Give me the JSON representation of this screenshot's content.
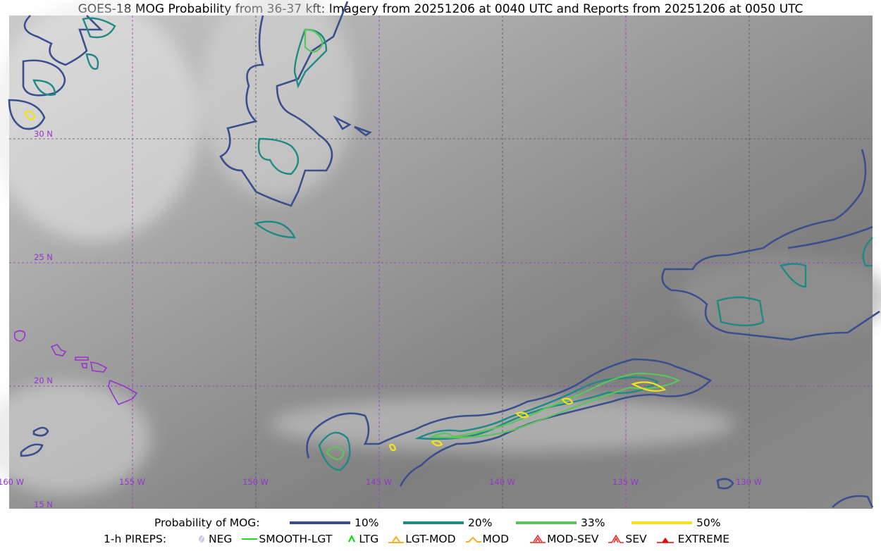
{
  "title": "GOES-18 MOG Probability from 36-37 kft: Imagery from 20251206 at 0040 UTC and Reports from 20251206 at 0050 UTC",
  "map": {
    "lat_labels": [
      "30 N",
      "25 N",
      "20 N",
      "15 N"
    ],
    "lon_labels": [
      "160 W",
      "155 W",
      "150 W",
      "145 W",
      "140 W",
      "135 W",
      "130 W"
    ],
    "grid_color": "#9933cc",
    "coastline_color": "#9933cc"
  },
  "legend": {
    "probability_title": "Probability of MOG:",
    "levels": [
      {
        "label": "10%",
        "color": "#3b4f8c"
      },
      {
        "label": "20%",
        "color": "#1f8a84"
      },
      {
        "label": "33%",
        "color": "#5cc45c"
      },
      {
        "label": "50%",
        "color": "#f4e01c"
      }
    ],
    "pireps_title": "1-h PIREPS:",
    "pireps": [
      {
        "label": "NEG",
        "icon": "neg-icon",
        "color": "#c8c8f0"
      },
      {
        "label": "SMOOTH-LGT",
        "icon": "line-icon",
        "color": "#22dd22"
      },
      {
        "label": "LTG",
        "icon": "caret-icon",
        "color": "#00dd00"
      },
      {
        "label": "LGT-MOD",
        "icon": "caret-bar-icon",
        "color": "#f6b020"
      },
      {
        "label": "MOD",
        "icon": "caret-icon",
        "color": "#f6b020"
      },
      {
        "label": "MOD-SEV",
        "icon": "double-caret-bar-icon",
        "color": "#ee2222"
      },
      {
        "label": "SEV",
        "icon": "double-caret-icon",
        "color": "#ee2222"
      },
      {
        "label": "EXTREME",
        "icon": "filled-triangle-icon",
        "color": "#ee0000"
      }
    ]
  }
}
